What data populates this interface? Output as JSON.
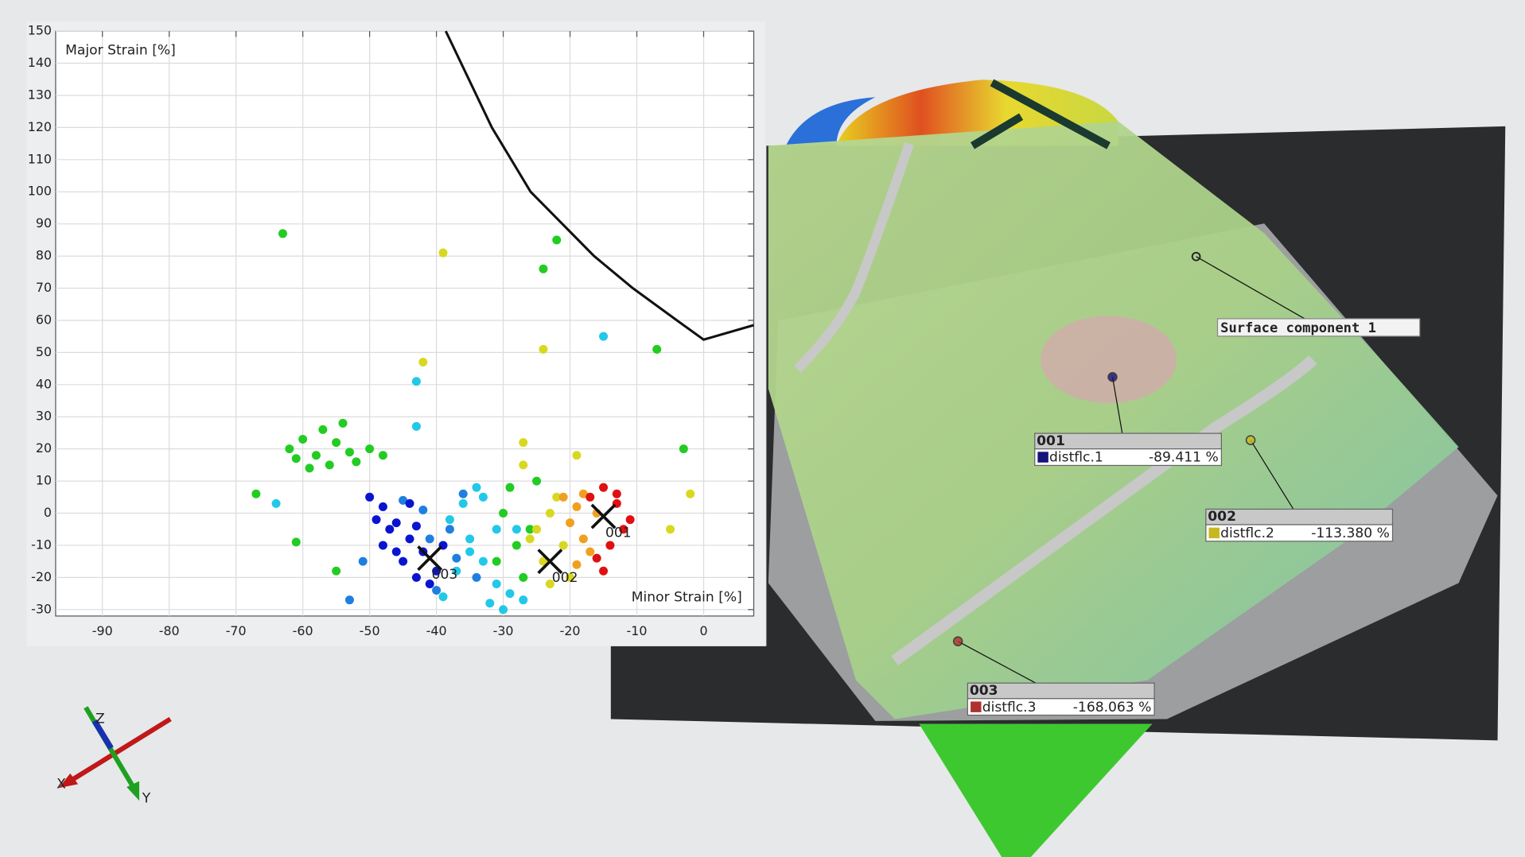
{
  "chart_data": {
    "type": "scatter",
    "ylabel": "Major Strain [%]",
    "xlabel": "Minor Strain [%]",
    "xlim": [
      -97,
      7.5
    ],
    "ylim": [
      -32,
      150
    ],
    "xticks": [
      -90,
      -80,
      -70,
      -60,
      -50,
      -40,
      -30,
      -20,
      -10,
      0
    ],
    "yticks": [
      -30,
      -20,
      -10,
      0,
      10,
      20,
      30,
      40,
      50,
      60,
      70,
      80,
      90,
      100,
      110,
      120,
      130,
      140,
      150
    ],
    "grid": true,
    "series": [
      {
        "type": "line",
        "color": "#111111",
        "x": [
          -38.6,
          -31.7,
          -25.9,
          -16.4,
          -10.6,
          -4,
          0,
          7.5
        ],
        "values": [
          150,
          120,
          100,
          80,
          70,
          60,
          54,
          58.5
        ]
      },
      {
        "type": "scatter",
        "color": "#22c8e8",
        "x": [
          -38,
          -35,
          -33,
          -31,
          -29,
          -36,
          -34,
          -32,
          -30,
          -37,
          -28,
          -33,
          -43,
          -64,
          -15,
          -43,
          -35,
          -31,
          -27,
          -39
        ],
        "values": [
          -2,
          -8,
          -15,
          -22,
          -25,
          3,
          8,
          -28,
          -30,
          -18,
          -5,
          5,
          27,
          3,
          55,
          41,
          -12,
          -5,
          -27,
          -26
        ]
      },
      {
        "type": "scatter",
        "color": "#1f7fe0",
        "x": [
          -45,
          -38,
          -36,
          -40,
          -34,
          -42,
          -51,
          -53,
          -41,
          -37
        ],
        "values": [
          4,
          -5,
          6,
          -24,
          -20,
          1,
          -15,
          -27,
          -8,
          -14
        ]
      },
      {
        "type": "scatter",
        "color": "#0a14d0",
        "x": [
          -50,
          -48,
          -46,
          -44,
          -42,
          -40,
          -47,
          -45,
          -43,
          -41,
          -49,
          -44,
          -39,
          -46,
          -48,
          -43
        ],
        "values": [
          5,
          2,
          -3,
          -8,
          -12,
          -18,
          -5,
          -15,
          -20,
          -22,
          -2,
          3,
          -10,
          -12,
          -10,
          -4
        ]
      },
      {
        "type": "scatter",
        "color": "#22cc22",
        "x": [
          -62,
          -60,
          -58,
          -57,
          -55,
          -54,
          -52,
          -50,
          -48,
          -59,
          -56,
          -53,
          -61,
          -63,
          -30,
          -28,
          -27,
          -26,
          -25,
          -29,
          -22,
          -24,
          -7,
          -3,
          -67,
          -61,
          -31,
          -55
        ],
        "values": [
          20,
          23,
          18,
          26,
          22,
          28,
          16,
          20,
          18,
          14,
          15,
          19,
          17,
          87,
          0,
          -10,
          -20,
          -5,
          10,
          8,
          85,
          76,
          51,
          20,
          6,
          -9,
          -15,
          -18
        ]
      },
      {
        "type": "scatter",
        "color": "#d8d820",
        "x": [
          -25,
          -23,
          -21,
          -24,
          -22,
          -20,
          -26,
          -27,
          -39,
          -24,
          -42,
          -5,
          -2,
          -27,
          -19,
          -23
        ],
        "values": [
          -5,
          0,
          -10,
          -15,
          5,
          -20,
          -8,
          15,
          81,
          51,
          47,
          -5,
          6,
          22,
          18,
          -22
        ]
      },
      {
        "type": "scatter",
        "color": "#f0a020",
        "x": [
          -20,
          -19,
          -18,
          -17,
          -21,
          -19,
          -16,
          -18
        ],
        "values": [
          -3,
          2,
          -8,
          -12,
          5,
          -16,
          0,
          6
        ]
      },
      {
        "type": "scatter",
        "color": "#e01010",
        "x": [
          -17,
          -15,
          -13,
          -12,
          -14,
          -16,
          -11,
          -15,
          -13
        ],
        "values": [
          5,
          8,
          3,
          -5,
          -10,
          -14,
          -2,
          -18,
          6
        ]
      }
    ],
    "markers": [
      {
        "label": "001",
        "x": -15,
        "y": -1
      },
      {
        "label": "002",
        "x": -23,
        "y": -15
      },
      {
        "label": "003",
        "x": -41,
        "y": -14
      }
    ]
  },
  "scene": {
    "surface_label": "Surface component 1",
    "callouts": [
      {
        "id": "001",
        "name": "distflc.1",
        "value": "-89.411 %",
        "color": "#14147a"
      },
      {
        "id": "002",
        "name": "distflc.2",
        "value": "-113.380 %",
        "color": "#c8b820"
      },
      {
        "id": "003",
        "name": "distflc.3",
        "value": "-168.063 %",
        "color": "#b03030"
      }
    ],
    "triad": [
      "Z",
      "X",
      "Y"
    ]
  }
}
